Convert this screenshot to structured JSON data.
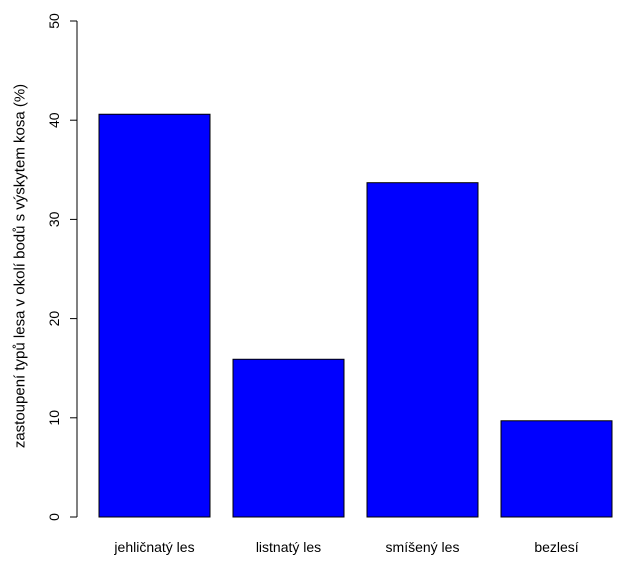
{
  "chart_data": {
    "type": "bar",
    "title": "",
    "xlabel": "",
    "ylabel": "zastoupení typů lesa v okolí bodů s výskytem kosa (%)",
    "categories": [
      "jehličnatý les",
      "listnatý les",
      "smíšený les",
      "bezlesí"
    ],
    "values": [
      40.6,
      15.9,
      33.7,
      9.7
    ],
    "ylim": [
      0,
      50
    ],
    "yticks": [
      0,
      10,
      20,
      30,
      40,
      50
    ],
    "bar_color": "#0000ff",
    "bar_border_color": "#000000",
    "grid": false,
    "legend": "none"
  }
}
